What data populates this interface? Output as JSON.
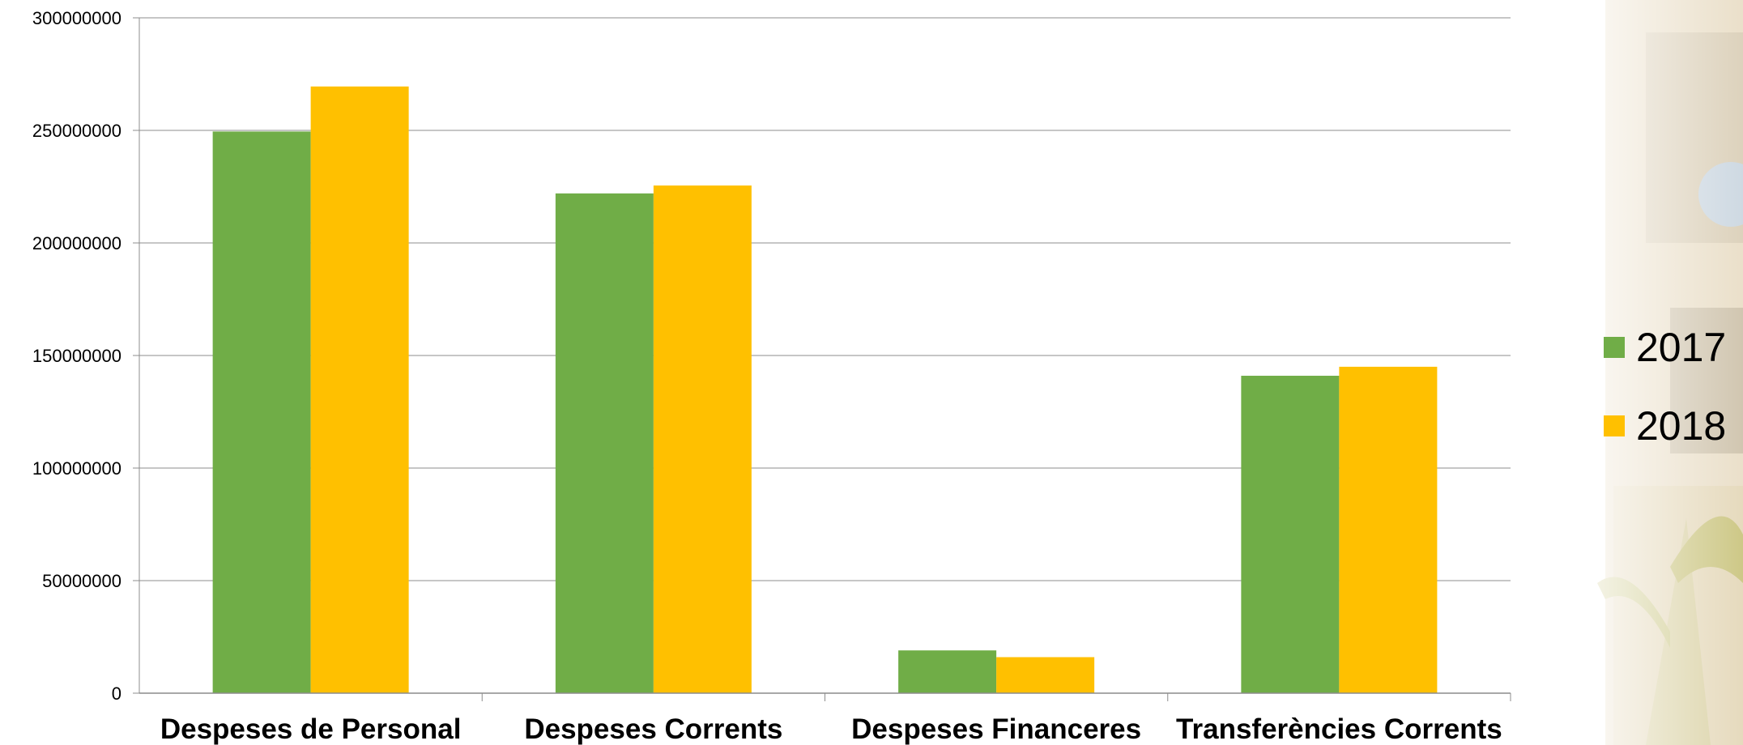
{
  "chart_data": {
    "type": "bar",
    "categories": [
      "Despeses de Personal",
      "Despeses Corrents",
      "Despeses Financeres",
      "Transferències Corrents"
    ],
    "series": [
      {
        "name": "2017",
        "color": "#70ad47",
        "values": [
          249500000,
          222000000,
          19000000,
          141000000
        ]
      },
      {
        "name": "2018",
        "color": "#ffc000",
        "values": [
          269500000,
          225500000,
          16000000,
          145000000
        ]
      }
    ],
    "ylim": [
      0,
      300000000
    ],
    "yticks": [
      0,
      50000000,
      100000000,
      150000000,
      200000000,
      250000000,
      300000000
    ],
    "grid": true,
    "legend_position": "right",
    "title": "",
    "xlabel": "",
    "ylabel": ""
  }
}
